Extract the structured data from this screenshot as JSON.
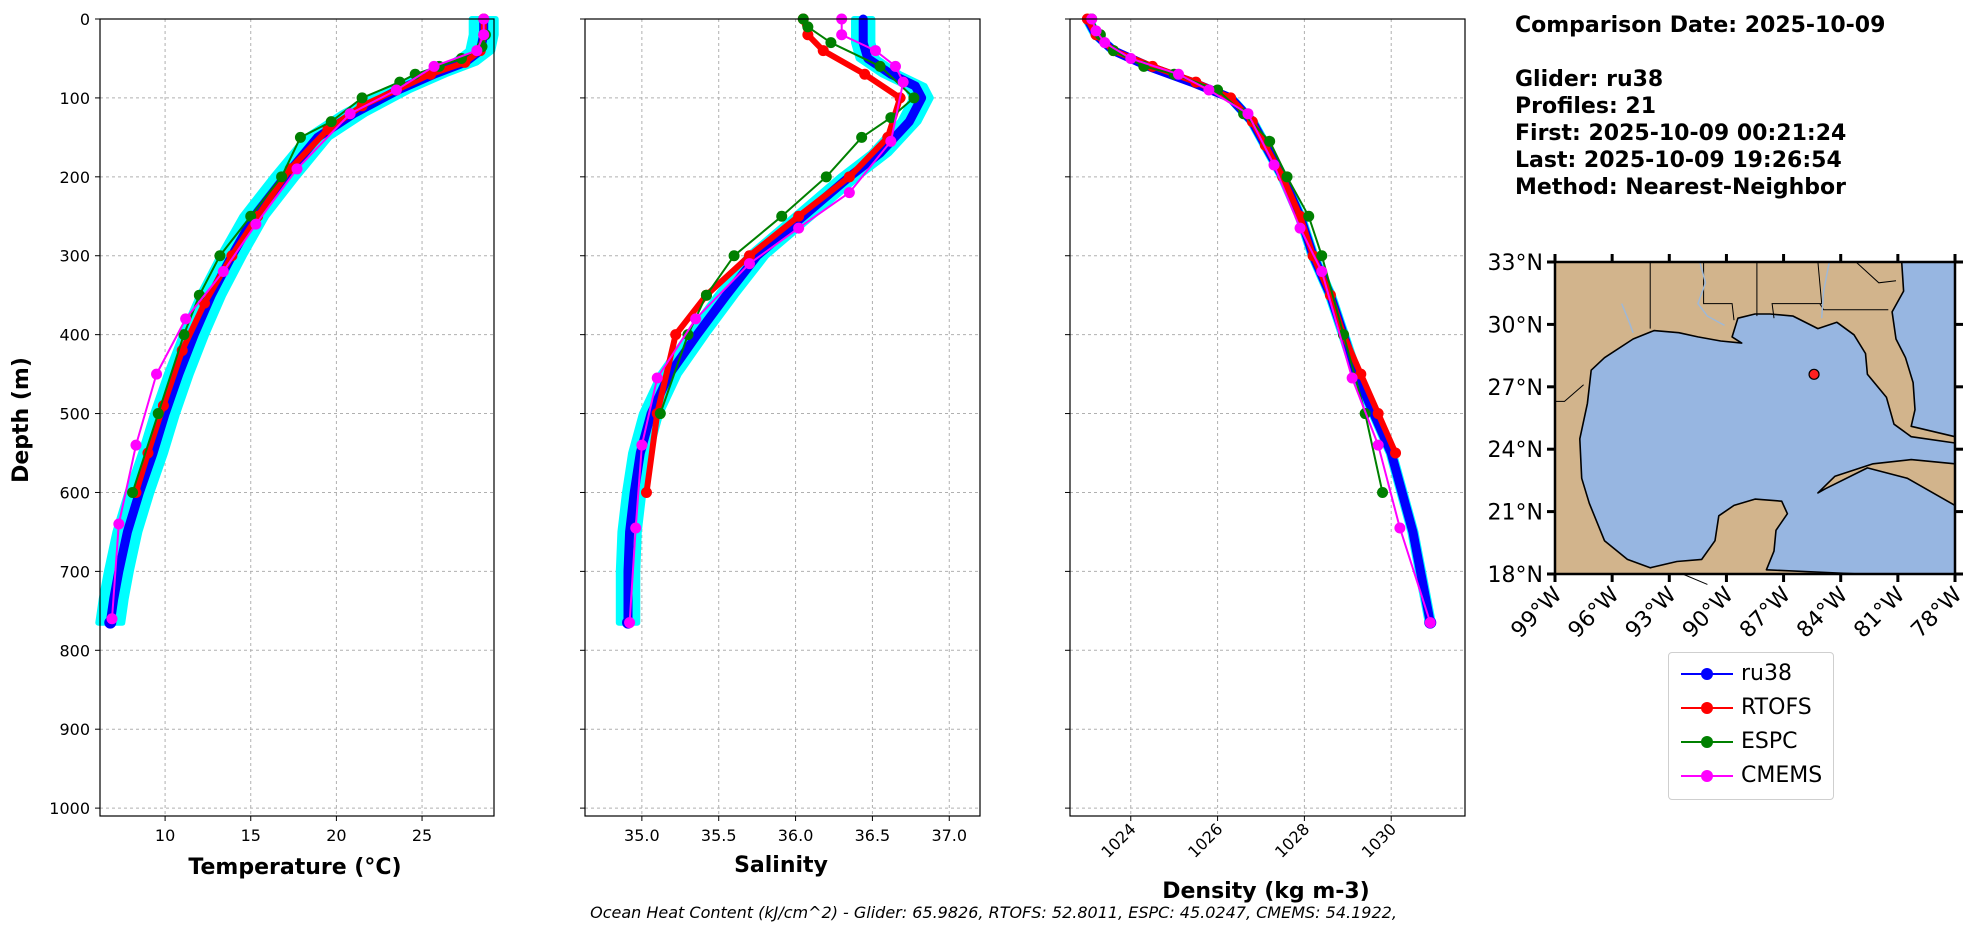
{
  "colors": {
    "glider": "#0000ff",
    "glider_spread": "#00ffff",
    "rtofs": "#ff0000",
    "espc": "#008000",
    "cmems": "#ff00ff",
    "land": "#d2b48c",
    "ocean": "#97b6e1",
    "grid": "#b0b0b0"
  },
  "info": {
    "comparison_date": "Comparison Date: 2025-10-09",
    "glider": "Glider: ru38",
    "profiles": "Profiles: 21",
    "first": "First: 2025-10-09 00:21:24",
    "last": "Last: 2025-10-09 19:26:54",
    "method": "Method: Nearest-Neighbor"
  },
  "footer": {
    "ohc_text": "Ocean Heat Content (kJ/cm^2) - Glider: 65.9826,  RTOFS: 52.8011,  ESPC: 45.0247,  CMEMS: 54.1922,"
  },
  "chart_data": [
    {
      "type": "line",
      "xlabel": "Temperature (°C)",
      "ylabel": "Depth (m)",
      "xlim": [
        6.2,
        29.2
      ],
      "ylim": [
        1010,
        0
      ],
      "y_inverted": true,
      "grid": true,
      "xticks": [
        10,
        15,
        20,
        25
      ],
      "yticks": [
        0,
        100,
        200,
        300,
        400,
        500,
        600,
        700,
        800,
        900,
        1000
      ],
      "series": [
        {
          "name": "ru38",
          "x": [
            28.6,
            28.6,
            28.4,
            27.5,
            25.7,
            23.6,
            21.0,
            18.9,
            17.0,
            15.2,
            13.9,
            12.7,
            11.7,
            10.8,
            10.0,
            9.3,
            8.5,
            7.8,
            7.3,
            7.0,
            6.8
          ],
          "y": [
            0,
            20,
            40,
            55,
            70,
            90,
            120,
            150,
            200,
            250,
            300,
            350,
            400,
            450,
            500,
            550,
            600,
            650,
            700,
            735,
            765
          ],
          "spread": 0.7
        },
        {
          "name": "RTOFS",
          "x": [
            28.6,
            28.6,
            28.4,
            27.5,
            25.5,
            23.5,
            21.5,
            19.5,
            17.3,
            15.4,
            13.9,
            12.3,
            11.0,
            9.9,
            9.0,
            8.3
          ],
          "y": [
            0,
            20,
            40,
            55,
            70,
            90,
            110,
            140,
            190,
            250,
            300,
            360,
            420,
            490,
            550,
            600
          ]
        },
        {
          "name": "ESPC",
          "x": [
            28.7,
            28.5,
            27.3,
            26.0,
            24.6,
            23.7,
            21.5,
            19.7,
            17.9,
            16.8,
            15.0,
            13.2,
            12.0,
            11.1,
            9.6,
            8.1
          ],
          "y": [
            20,
            35,
            50,
            60,
            70,
            80,
            100,
            130,
            150,
            200,
            250,
            300,
            350,
            400,
            500,
            600
          ]
        },
        {
          "name": "CMEMS",
          "x": [
            28.6,
            28.6,
            28.2,
            25.7,
            23.5,
            20.8,
            17.7,
            15.3,
            13.4,
            11.2,
            9.5,
            8.3,
            7.3,
            6.9
          ],
          "y": [
            0,
            20,
            40,
            60,
            90,
            120,
            190,
            260,
            320,
            380,
            450,
            540,
            640,
            760
          ]
        }
      ]
    },
    {
      "type": "line",
      "xlabel": "Salinity",
      "ylabel": "",
      "xlim": [
        34.63,
        37.2
      ],
      "ylim": [
        1010,
        0
      ],
      "y_inverted": true,
      "grid": true,
      "xticks": [
        "35.0",
        "35.5",
        "36.0",
        "36.5",
        "37.0"
      ],
      "series": [
        {
          "name": "ru38",
          "x": [
            36.44,
            36.44,
            36.47,
            36.62,
            36.78,
            36.82,
            36.74,
            36.55,
            36.35,
            36.05,
            35.75,
            35.55,
            35.36,
            35.18,
            35.06,
            34.99,
            34.95,
            34.92,
            34.91,
            34.91
          ],
          "y": [
            0,
            30,
            50,
            70,
            85,
            100,
            130,
            170,
            200,
            250,
            300,
            350,
            400,
            450,
            500,
            550,
            600,
            650,
            700,
            765
          ],
          "spread": 0.06
        },
        {
          "name": "RTOFS",
          "x": [
            36.05,
            36.08,
            36.18,
            36.45,
            36.68,
            36.6,
            36.35,
            36.02,
            35.7,
            35.42,
            35.22,
            35.1,
            35.03
          ],
          "y": [
            0,
            20,
            40,
            70,
            100,
            150,
            200,
            250,
            300,
            350,
            400,
            500,
            600
          ]
        },
        {
          "name": "ESPC",
          "x": [
            36.05,
            36.08,
            36.23,
            36.55,
            36.77,
            36.62,
            36.43,
            36.2,
            35.91,
            35.6,
            35.42,
            35.3,
            35.12
          ],
          "y": [
            0,
            10,
            30,
            60,
            100,
            125,
            150,
            200,
            250,
            300,
            350,
            400,
            500
          ]
        },
        {
          "name": "CMEMS",
          "x": [
            36.3,
            36.3,
            36.52,
            36.65,
            36.7,
            36.62,
            36.35,
            36.02,
            35.7,
            35.35,
            35.1,
            35.0,
            34.96,
            34.92
          ],
          "y": [
            0,
            20,
            40,
            60,
            80,
            155,
            220,
            265,
            310,
            380,
            455,
            540,
            645,
            765
          ]
        }
      ]
    },
    {
      "type": "line",
      "xlabel": "Density (kg m-3)",
      "ylabel": "",
      "xlim": [
        1022.6,
        1031.7
      ],
      "ylim": [
        1010,
        0
      ],
      "y_inverted": true,
      "grid": true,
      "xticks": [
        1024,
        1026,
        1028,
        1030
      ],
      "series": [
        {
          "name": "ru38",
          "x": [
            1023.0,
            1023.2,
            1023.6,
            1024.4,
            1025.4,
            1026.3,
            1026.8,
            1027.1,
            1027.5,
            1027.9,
            1028.2,
            1028.6,
            1028.9,
            1029.2,
            1029.6,
            1030.0,
            1030.5,
            1030.9
          ],
          "y": [
            0,
            20,
            40,
            60,
            80,
            100,
            130,
            160,
            200,
            250,
            300,
            350,
            400,
            450,
            500,
            550,
            650,
            765
          ],
          "spread": 0.06
        },
        {
          "name": "RTOFS",
          "x": [
            1023.0,
            1023.2,
            1023.6,
            1024.5,
            1025.5,
            1026.3,
            1026.8,
            1027.1,
            1027.5,
            1027.9,
            1028.2,
            1028.6,
            1028.9,
            1029.3,
            1029.7,
            1030.1
          ],
          "y": [
            0,
            20,
            40,
            60,
            80,
            100,
            130,
            160,
            200,
            250,
            300,
            350,
            400,
            450,
            500,
            550
          ]
        },
        {
          "name": "ESPC",
          "x": [
            1023.1,
            1023.3,
            1023.6,
            1024.3,
            1025.0,
            1026.0,
            1026.6,
            1027.2,
            1027.6,
            1028.1,
            1028.4,
            1028.9,
            1029.4,
            1029.8
          ],
          "y": [
            0,
            20,
            40,
            60,
            70,
            90,
            120,
            155,
            200,
            250,
            300,
            400,
            500,
            600
          ]
        },
        {
          "name": "CMEMS",
          "x": [
            1023.1,
            1023.2,
            1023.4,
            1024.0,
            1025.1,
            1025.8,
            1026.7,
            1027.3,
            1027.9,
            1028.4,
            1029.1,
            1029.7,
            1030.2,
            1030.9
          ],
          "y": [
            0,
            15,
            30,
            50,
            70,
            90,
            120,
            185,
            265,
            320,
            455,
            540,
            645,
            765
          ]
        }
      ]
    },
    {
      "type": "map",
      "lon_range": [
        -99,
        -78
      ],
      "lat_range": [
        18,
        33
      ],
      "xticks": [
        "99°W",
        "96°W",
        "93°W",
        "90°W",
        "87°W",
        "84°W",
        "81°W",
        "78°W"
      ],
      "yticks": [
        "18°N",
        "21°N",
        "24°N",
        "27°N",
        "30°N",
        "33°N"
      ],
      "glider_position": {
        "lon": -85.4,
        "lat": 27.6
      }
    }
  ],
  "legend": {
    "entries": [
      "ru38",
      "RTOFS",
      "ESPC",
      "CMEMS"
    ]
  }
}
